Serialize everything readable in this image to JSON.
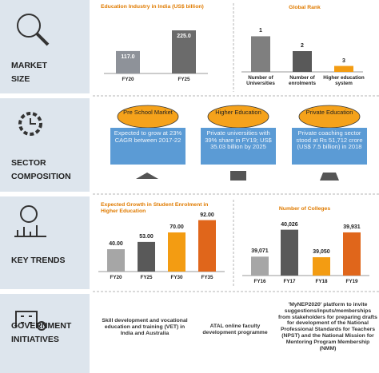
{
  "sections": [
    {
      "label": "MARKET SIZE"
    },
    {
      "label": "SECTOR COMPOSITION"
    },
    {
      "label": "KEY TRENDS"
    },
    {
      "label": "GOVERNMENT INITIATIVES"
    }
  ],
  "chart_data": [
    {
      "type": "bar",
      "title": "Education Industry in India (US$ billion)",
      "categories": [
        "FY20",
        "FY25"
      ],
      "values": [
        117,
        225
      ],
      "value_labels": [
        "117.0",
        "225.0"
      ],
      "colors": [
        "#8e9299",
        "#6b6b6b"
      ],
      "ylim": [
        0,
        250
      ]
    },
    {
      "type": "bar",
      "title": "Global Rank",
      "categories": [
        "Number of Universities",
        "Number of enrolments",
        "Higher education system"
      ],
      "values": [
        1,
        2,
        3
      ],
      "colors": [
        "#7f7f7f",
        "#595959",
        "#f39c12"
      ],
      "ylim": [
        3.4,
        0.6
      ]
    },
    {
      "type": "bar",
      "title": "Expected Growth in Student Enrolment in Higher Education",
      "categories": [
        "FY20",
        "FY25",
        "FY30",
        "FY35"
      ],
      "values": [
        40,
        53,
        70,
        92
      ],
      "value_labels": [
        "40.00",
        "53.00",
        "70.00",
        "92.00"
      ],
      "colors": [
        "#a6a6a6",
        "#595959",
        "#f39c12",
        "#e0661b"
      ],
      "ylim": [
        0,
        100
      ]
    },
    {
      "type": "bar",
      "title": "Number of Colleges",
      "categories": [
        "FY16",
        "FY17",
        "FY18",
        "FY19"
      ],
      "values": [
        39071,
        40026,
        39050,
        39931
      ],
      "value_labels": [
        "39,071",
        "40,026",
        "39,050",
        "39,931"
      ],
      "colors": [
        "#a6a6a6",
        "#595959",
        "#f39c12",
        "#e0661b"
      ],
      "ylim": [
        38400,
        40100
      ]
    }
  ],
  "sector_composition": [
    {
      "title": "Pre School Market",
      "text": "Expected to grow at 23% CAGR between 2017-22"
    },
    {
      "title": "Higher Education",
      "text": "Private universities with 39% share in FY19; US$ 35.03 billion by 2025"
    },
    {
      "title": "Private Education",
      "text": "Private coaching sector stood at Rs 51,712 crore (US$ 7.5 billion) in 2018"
    }
  ],
  "government_initiatives": [
    "Skill development and vocational education and training (VET) in India and Australia",
    "ATAL online faculty development programme",
    "'MyNEP2020' platform to invite suggestions/inputs/memberships from stakeholders for preparing drafts for development of the National Professional Standards for Teachers (NPST) and the National Mission for Mentoring Program Membership (NMM)"
  ]
}
